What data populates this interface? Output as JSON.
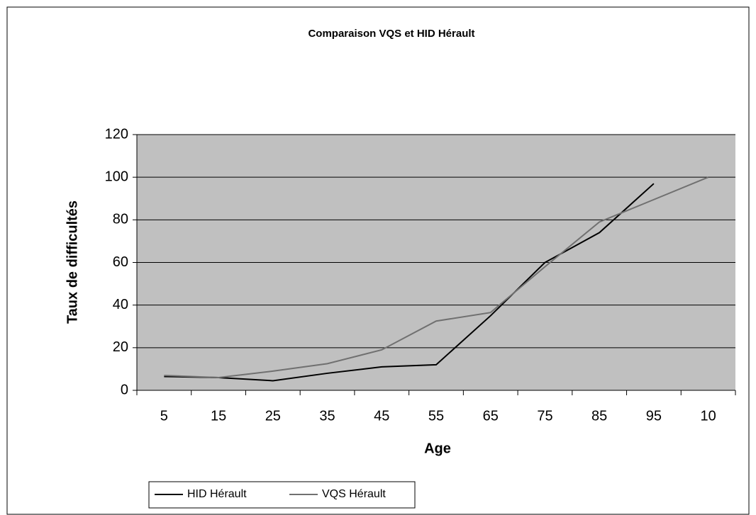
{
  "chart_data": {
    "type": "line",
    "title": "Comparaison VQS et HID Hérault",
    "x_label": "Age",
    "y_label": "Taux de difficultés",
    "categories": [
      "5",
      "15",
      "25",
      "35",
      "45",
      "55",
      "65",
      "75",
      "85",
      "95",
      "10"
    ],
    "series": [
      {
        "name": "HID Hérault",
        "color": "#000000",
        "values": [
          6.5,
          6,
          4.5,
          8,
          11,
          12,
          35,
          60,
          74,
          97,
          null
        ]
      },
      {
        "name": "VQS Hérault",
        "color": "#707070",
        "values": [
          7,
          6,
          9,
          12.5,
          19,
          32.5,
          36.5,
          58,
          79,
          89.5,
          100
        ]
      }
    ],
    "ylim": [
      0,
      120
    ],
    "yticks": [
      0,
      20,
      40,
      60,
      80,
      100,
      120
    ],
    "grid": true,
    "legend": "bottom-left"
  }
}
